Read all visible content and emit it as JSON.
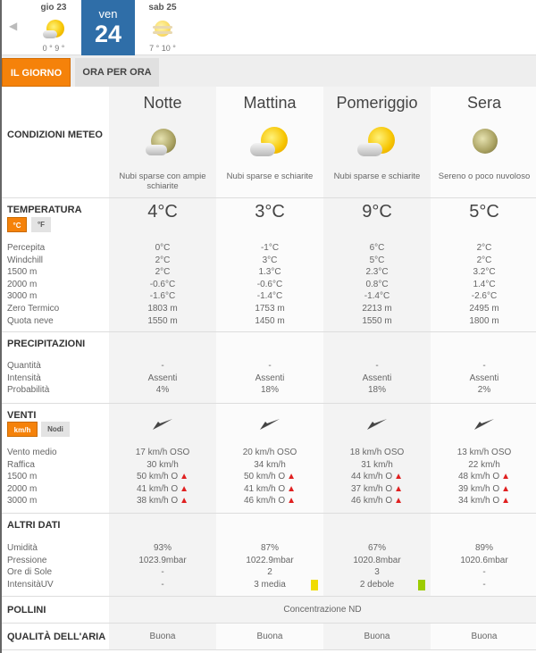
{
  "days": [
    {
      "label": "gio 23",
      "temps": "0 ° 9 °",
      "icon": "sun-cloud-icon"
    },
    {
      "label": "ven",
      "number": "24"
    },
    {
      "label": "sab 25",
      "temps": "7 ° 10 °",
      "icon": "fog-sun-icon"
    }
  ],
  "tabs": {
    "day": "IL GIORNO",
    "hourly": "ORA PER ORA"
  },
  "colors": {
    "accent": "#f5820a",
    "selected_day": "#2f6ea8",
    "uv_media": "#f0dc00",
    "uv_debole": "#9ccc00",
    "warning": "#e02020"
  },
  "sections": {
    "conditions": {
      "title": "CONDIZIONI METEO"
    },
    "temperature": {
      "title": "TEMPERATURA",
      "unit_c": "°C",
      "unit_f": "°F",
      "rows": [
        "Percepita",
        "Windchill",
        "1500 m",
        "2000 m",
        "3000 m",
        "Zero Termico",
        "Quota neve"
      ]
    },
    "precip": {
      "title": "PRECIPITAZIONI",
      "rows": [
        "Quantità",
        "Intensità",
        "Probabilità"
      ]
    },
    "wind": {
      "title": "VENTI",
      "unit_kmh": "km/h",
      "unit_knots": "Nodi",
      "rows": [
        "Vento medio",
        "Raffica",
        "1500 m",
        "2000 m",
        "3000 m"
      ]
    },
    "other": {
      "title": "ALTRI DATI",
      "rows": [
        "Umidità",
        "Pressione",
        "Ore di Sole",
        "IntensitàUV"
      ]
    },
    "pollen": {
      "title": "POLLINI",
      "value": "Concentrazione ND"
    },
    "air": {
      "title": "QUALITÀ DELL'ARIA"
    }
  },
  "periods": [
    {
      "name": "Notte",
      "icon": "moon-cloud-icon",
      "condition": "Nubi sparse con ampie schiarite",
      "temp": "4°C",
      "temperature": [
        "0°C",
        "2°C",
        "2°C",
        "-0.6°C",
        "-1.6°C",
        "1803 m",
        "1550 m"
      ],
      "precip": [
        "-",
        "Assenti",
        "4%"
      ],
      "wind": [
        "17 km/h  OSO",
        "30 km/h",
        "50 km/h O",
        "41 km/h O",
        "38 km/h O"
      ],
      "wind_warn": [
        false,
        false,
        true,
        true,
        true
      ],
      "other": [
        "93%",
        "1023.9mbar",
        "-",
        "-"
      ],
      "uv_level": null,
      "air": "Buona"
    },
    {
      "name": "Mattina",
      "icon": "sun-cloud-icon",
      "condition": "Nubi sparse e schiarite",
      "temp": "3°C",
      "temperature": [
        "-1°C",
        "3°C",
        "1.3°C",
        "-0.6°C",
        "-1.4°C",
        "1753 m",
        "1450 m"
      ],
      "precip": [
        "-",
        "Assenti",
        "18%"
      ],
      "wind": [
        "20 km/h OSO",
        "34 km/h",
        "50 km/h O",
        "41 km/h O",
        "46 km/h O"
      ],
      "wind_warn": [
        false,
        false,
        true,
        true,
        true
      ],
      "other": [
        "87%",
        "1022.9mbar",
        "2",
        "3 media"
      ],
      "uv_level": "media",
      "air": "Buona"
    },
    {
      "name": "Pomeriggio",
      "icon": "sun-cloud-icon",
      "condition": "Nubi sparse e schiarite",
      "temp": "9°C",
      "temperature": [
        "6°C",
        "5°C",
        "2.3°C",
        "0.8°C",
        "-1.4°C",
        "2213 m",
        "1550 m"
      ],
      "precip": [
        "-",
        "Assenti",
        "18%"
      ],
      "wind": [
        "18 km/h OSO",
        "31 km/h",
        "44 km/h O",
        "37 km/h O",
        "46 km/h O"
      ],
      "wind_warn": [
        false,
        false,
        true,
        true,
        true
      ],
      "other": [
        "67%",
        "1020.8mbar",
        "3",
        "2 debole"
      ],
      "uv_level": "debole",
      "air": "Buona"
    },
    {
      "name": "Sera",
      "icon": "moon-icon",
      "condition": "Sereno o poco nuvoloso",
      "temp": "5°C",
      "temperature": [
        "2°C",
        "2°C",
        "3.2°C",
        "1.4°C",
        "-2.6°C",
        "2495 m",
        "1800 m"
      ],
      "precip": [
        "-",
        "Assenti",
        "2%"
      ],
      "wind": [
        "13 km/h OSO",
        "22 km/h",
        "48 km/h O",
        "39 km/h O",
        "34 km/h O"
      ],
      "wind_warn": [
        false,
        false,
        true,
        true,
        true
      ],
      "other": [
        "89%",
        "1020.6mbar",
        "-",
        "-"
      ],
      "uv_level": null,
      "air": "Buona"
    }
  ]
}
